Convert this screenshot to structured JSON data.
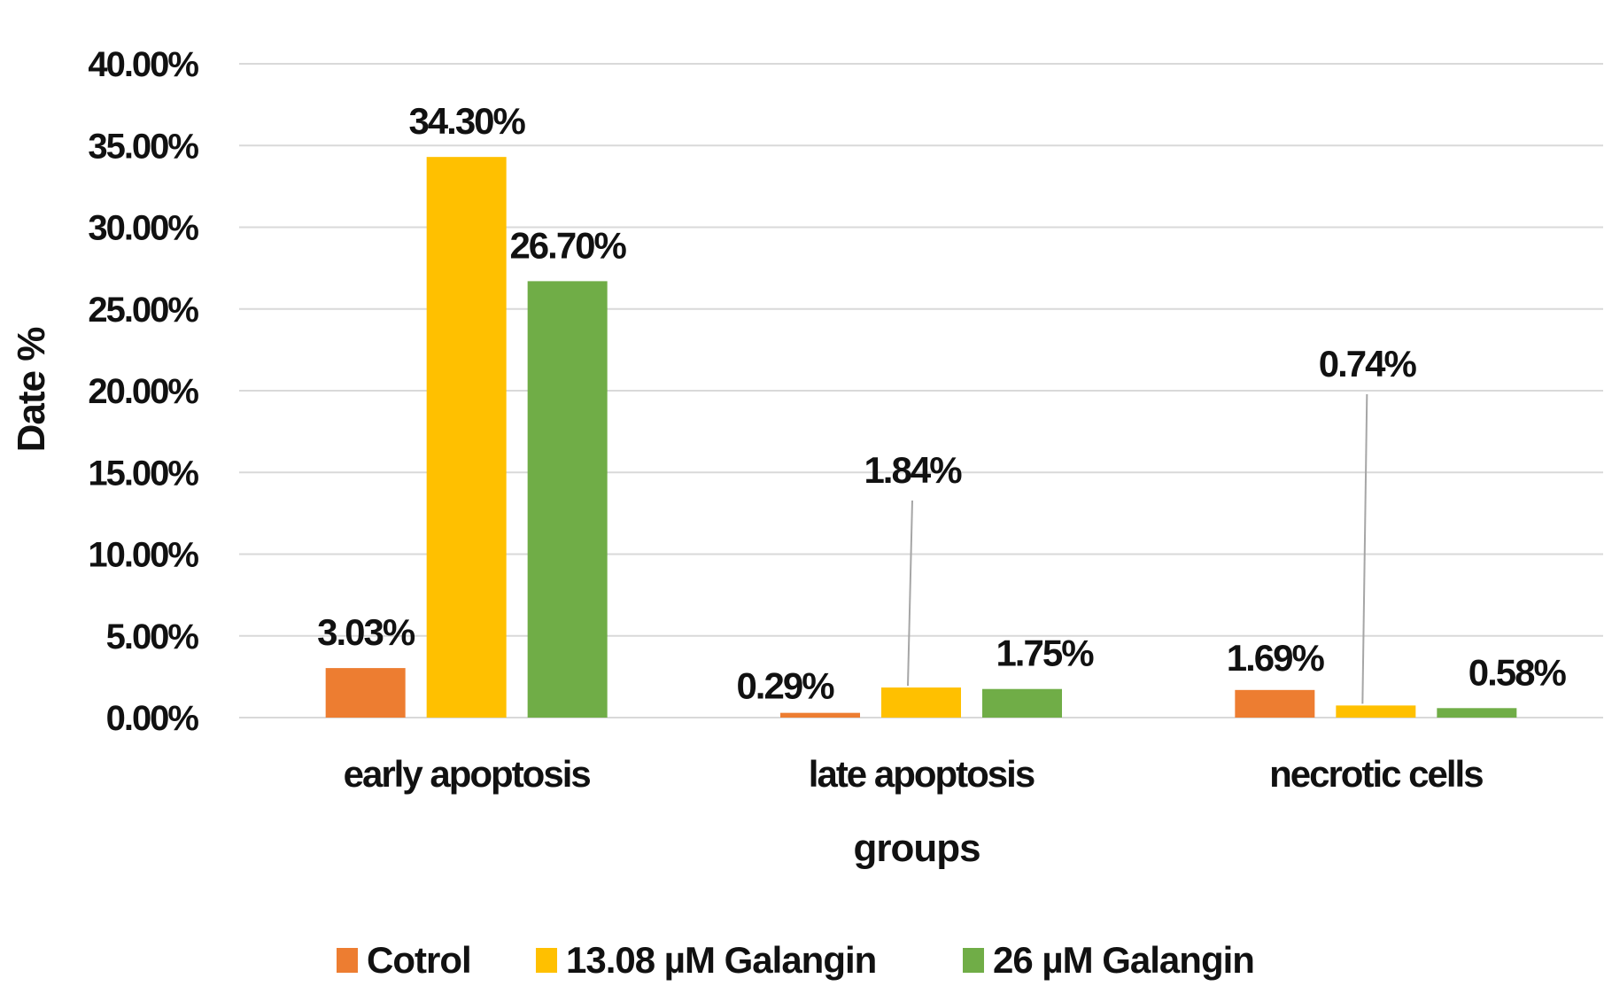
{
  "chart_data": {
    "type": "bar",
    "title": "",
    "xlabel": "groups",
    "ylabel": "Date %",
    "ylim": [
      0,
      40
    ],
    "yticks": [
      "0.00%",
      "5.00%",
      "10.00%",
      "15.00%",
      "20.00%",
      "25.00%",
      "30.00%",
      "35.00%",
      "40.00%"
    ],
    "grid": true,
    "legend_position": "bottom",
    "categories": [
      "early apoptosis",
      "late apoptosis",
      "necrotic cells"
    ],
    "series": [
      {
        "name": "Cotrol",
        "color": "#ED7D31",
        "values": [
          3.03,
          0.29,
          1.69
        ],
        "labels": [
          "3.03%",
          "0.29%",
          "1.69%"
        ]
      },
      {
        "name": "13.08 µM  Galangin",
        "color": "#FFC000",
        "values": [
          34.3,
          1.84,
          0.74
        ],
        "labels": [
          "34.30%",
          "1.84%",
          "0.74%"
        ]
      },
      {
        "name": "26 µM Galangin",
        "color": "#70AD47",
        "values": [
          26.7,
          1.75,
          0.58
        ],
        "labels": [
          "26.70%",
          "1.75%",
          "0.58%"
        ]
      }
    ]
  }
}
